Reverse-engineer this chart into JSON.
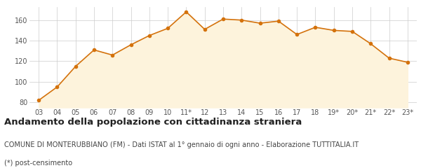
{
  "x_labels": [
    "03",
    "04",
    "05",
    "06",
    "07",
    "08",
    "09",
    "10",
    "11*",
    "12",
    "13",
    "14",
    "15",
    "16",
    "17",
    "18",
    "19*",
    "20*",
    "21*",
    "22*",
    "23*"
  ],
  "values": [
    82,
    95,
    115,
    131,
    126,
    136,
    145,
    152,
    168,
    151,
    161,
    160,
    157,
    159,
    146,
    153,
    150,
    149,
    137,
    123,
    119
  ],
  "line_color": "#d4720c",
  "fill_color": "#fdf3dc",
  "marker_color": "#d4720c",
  "bg_color": "#ffffff",
  "grid_color": "#cccccc",
  "ylim": [
    75,
    173
  ],
  "yticks": [
    80,
    100,
    120,
    140,
    160
  ],
  "title": "Andamento della popolazione con cittadinanza straniera",
  "subtitle": "COMUNE DI MONTERUBBIANO (FM) - Dati ISTAT al 1° gennaio di ogni anno - Elaborazione TUTTITALIA.IT",
  "footnote": "(*) post-censimento",
  "title_fontsize": 9.5,
  "subtitle_fontsize": 7,
  "footnote_fontsize": 7
}
